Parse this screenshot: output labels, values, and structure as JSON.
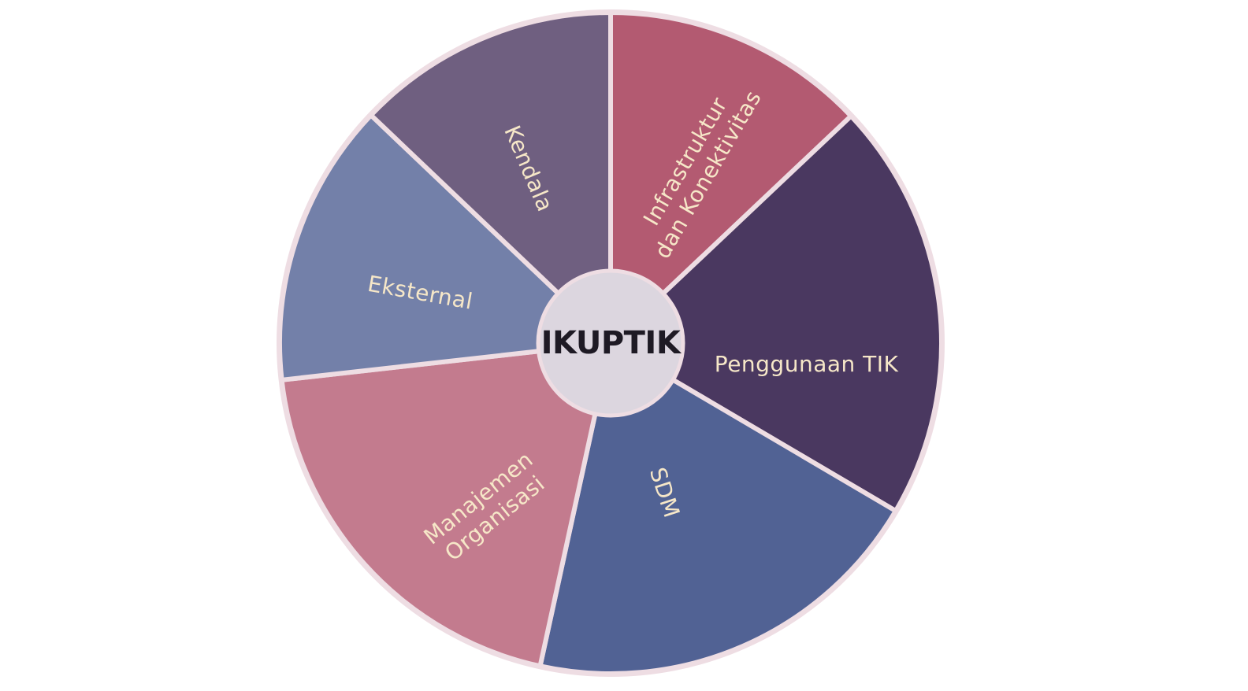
{
  "diagram": {
    "center": {
      "label": "IKUPTIK",
      "fill": "#DCD6DF",
      "text_color": "#1E1A24"
    },
    "ring_color": "#EEDDE3",
    "label_color": "#F6E7C8",
    "segments": [
      {
        "name": "infrastruktur",
        "lines": [
          "Infrastruktur",
          "dan Konektivitas"
        ],
        "fill": "#B35A71"
      },
      {
        "name": "penggunaan-tik",
        "lines": [
          "Penggunaan TIK"
        ],
        "fill": "#4A3860"
      },
      {
        "name": "sdm",
        "lines": [
          "SDM"
        ],
        "fill": "#516294"
      },
      {
        "name": "manajemen-organisasi",
        "lines": [
          "Manajemen",
          "Organisasi"
        ],
        "fill": "#C37B8E"
      },
      {
        "name": "eksternal",
        "lines": [
          "Eksternal"
        ],
        "fill": "#7380A9"
      },
      {
        "name": "kendala",
        "lines": [
          "Kendala"
        ],
        "fill": "#6F5F80"
      }
    ]
  }
}
